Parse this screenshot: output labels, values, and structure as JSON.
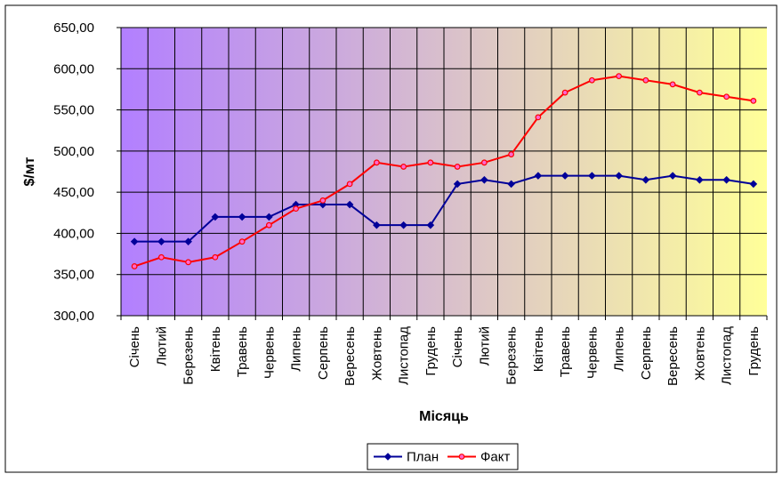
{
  "chart_data": {
    "type": "line",
    "xlabel": "Місяць",
    "ylabel": "$/мт",
    "ylim": [
      300,
      650
    ],
    "yticks": [
      300,
      350,
      400,
      450,
      500,
      550,
      600,
      650
    ],
    "ytick_labels": [
      "300,00",
      "350,00",
      "400,00",
      "450,00",
      "500,00",
      "550,00",
      "600,00",
      "650,00"
    ],
    "grid": true,
    "legend_position": "bottom",
    "background_gradient": [
      "#b27fff",
      "#ffff99"
    ],
    "categories": [
      "Січень",
      "Лютий",
      "Березень",
      "Квітень",
      "Травень",
      "Червень",
      "Липень",
      "Серпень",
      "Вересень",
      "Жовтень",
      "Листопад",
      "Грудень",
      "Січень",
      "Лютий",
      "Березень",
      "Квітень",
      "Травень",
      "Червень",
      "Липень",
      "Серпень",
      "Вересень",
      "Жовтень",
      "Листопад",
      "Грудень"
    ],
    "series": [
      {
        "name": "План",
        "color": "#000099",
        "marker": "diamond",
        "values": [
          390,
          390,
          390,
          420,
          420,
          420,
          435,
          435,
          435,
          410,
          410,
          410,
          460,
          465,
          460,
          470,
          470,
          470,
          470,
          465,
          470,
          465,
          465,
          460
        ]
      },
      {
        "name": "Факт",
        "color": "#ff0000",
        "marker": "circle",
        "values": [
          360,
          371,
          365,
          371,
          390,
          410,
          430,
          440,
          460,
          486,
          481,
          486,
          481,
          486,
          496,
          541,
          571,
          586,
          591,
          586,
          581,
          571,
          566,
          561
        ]
      }
    ]
  }
}
